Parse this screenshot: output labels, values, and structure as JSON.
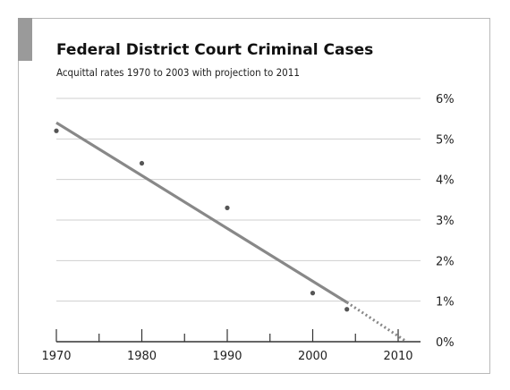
{
  "chart_data": {
    "type": "scatter",
    "title": "Federal District Court Criminal Cases",
    "subtitle": "Acquittal rates 1970 to 2003 with projection to 2011",
    "x_ticks": [
      1970,
      1980,
      1990,
      2000,
      2010
    ],
    "y_ticks": [
      "0%",
      "1%",
      "2%",
      "3%",
      "4%",
      "5%",
      "6%"
    ],
    "xlim": [
      1970,
      2012
    ],
    "ylim": [
      0,
      6
    ],
    "grid": true,
    "points": [
      {
        "x": 1970,
        "y": 5.2
      },
      {
        "x": 1980,
        "y": 4.4
      },
      {
        "x": 1990,
        "y": 3.3
      },
      {
        "x": 2000,
        "y": 1.2
      },
      {
        "x": 2004,
        "y": 0.8
      }
    ],
    "trend_line": {
      "x": [
        1970,
        2004
      ],
      "y": [
        5.4,
        0.97
      ]
    },
    "projection_line": {
      "x": [
        2004,
        2011
      ],
      "y": [
        0.97,
        0.0
      ]
    },
    "colors": {
      "line": "#888888",
      "points": "#555555",
      "grid": "#cfcfcf",
      "axis": "#333333"
    }
  }
}
